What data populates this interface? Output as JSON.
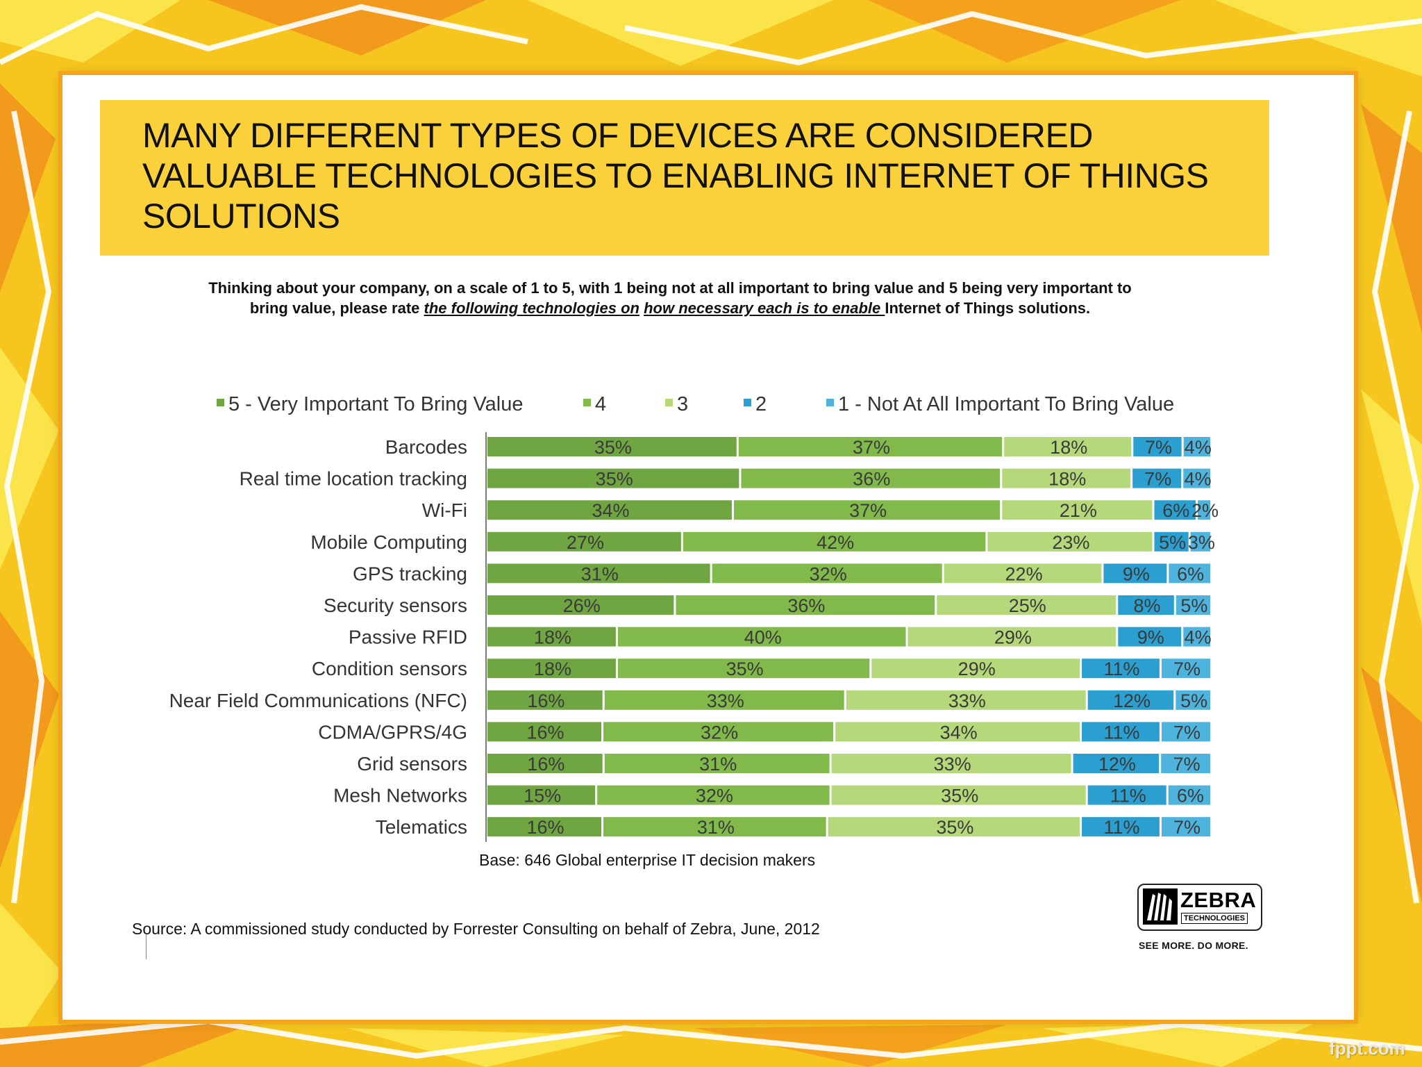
{
  "slide": {
    "title": "MANY DIFFERENT TYPES OF DEVICES ARE CONSIDERED VALUABLE TECHNOLOGIES TO ENABLING INTERNET OF THINGS SOLUTIONS",
    "question_part1": "Thinking about your company, on a scale of 1 to 5, with 1 being not at all important to bring value and 5 being very important to bring value, please rate ",
    "question_link1": "the following technologies on",
    "question_gap": " ",
    "question_link2": "how necessary each is to enable ",
    "question_part2": "Internet of Things solutions.",
    "base_note": "Base: 646 Global enterprise IT decision makers",
    "source_note": "Source: A commissioned study conducted by Forrester Consulting on behalf of Zebra, June, 2012",
    "logo_name": "ZEBRA",
    "logo_sub": "TECHNOLOGIES",
    "tagline": "SEE MORE. DO MORE.",
    "watermark": "fppt.com"
  },
  "chart_data": {
    "type": "bar",
    "orientation": "horizontal",
    "stacked": true,
    "title": "",
    "xlabel": "",
    "ylabel": "",
    "legend_position": "top",
    "categories": [
      "Barcodes",
      "Real time location tracking",
      "Wi-Fi",
      "Mobile Computing",
      "GPS tracking",
      "Security sensors",
      "Passive RFID",
      "Condition sensors",
      "Near Field Communications (NFC)",
      "CDMA/GPRS/4G",
      "Grid sensors",
      "Mesh Networks",
      "Telematics"
    ],
    "series": [
      {
        "name": "5 - Very Important To Bring Value",
        "color": "#6fa642",
        "values": [
          35,
          35,
          34,
          27,
          31,
          26,
          18,
          18,
          16,
          16,
          16,
          15,
          16
        ]
      },
      {
        "name": "4",
        "color": "#82b94b",
        "values": [
          37,
          36,
          37,
          42,
          32,
          36,
          40,
          35,
          33,
          32,
          31,
          32,
          31
        ]
      },
      {
        "name": "3",
        "color": "#b5d97a",
        "values": [
          18,
          18,
          21,
          23,
          22,
          25,
          29,
          29,
          33,
          34,
          33,
          35,
          35
        ]
      },
      {
        "name": "2",
        "color": "#2a9fd0",
        "values": [
          7,
          7,
          6,
          5,
          9,
          8,
          9,
          11,
          12,
          11,
          12,
          11,
          11
        ]
      },
      {
        "name": "1 - Not At All Important To Bring Value",
        "color": "#4eb3dd",
        "values": [
          4,
          4,
          2,
          3,
          6,
          5,
          4,
          7,
          5,
          7,
          7,
          6,
          7
        ]
      }
    ],
    "value_suffix": "%",
    "label_color": "#3a3a3a"
  }
}
